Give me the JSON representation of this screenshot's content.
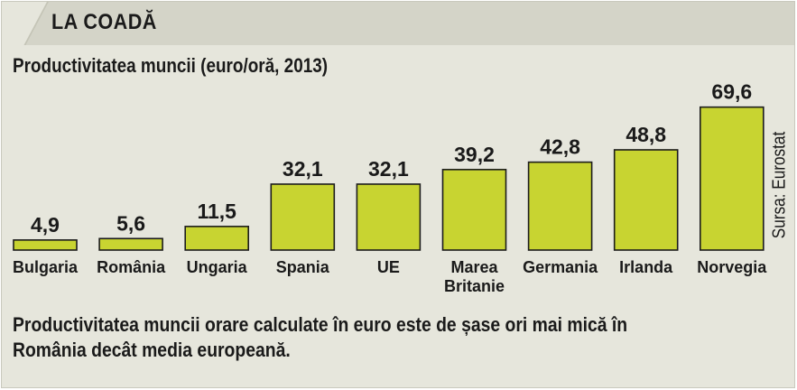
{
  "header": {
    "title": "LA COADĂ"
  },
  "chart_data": {
    "type": "bar",
    "title": "Productivitatea muncii (euro/oră, 2013)",
    "categories": [
      "Bulgaria",
      "România",
      "Ungaria",
      "Spania",
      "UE",
      "Marea Britanie",
      "Germania",
      "Irlanda",
      "Norvegia"
    ],
    "category_lines": [
      [
        "Bulgaria"
      ],
      [
        "România"
      ],
      [
        "Ungaria"
      ],
      [
        "Spania"
      ],
      [
        "UE"
      ],
      [
        "Marea",
        "Britanie"
      ],
      [
        "Germania"
      ],
      [
        "Irlanda"
      ],
      [
        "Norvegia"
      ]
    ],
    "values": [
      4.9,
      5.6,
      11.5,
      32.1,
      32.1,
      39.2,
      42.8,
      48.8,
      69.6
    ],
    "value_labels": [
      "4,9",
      "5,6",
      "11,5",
      "32,1",
      "32,1",
      "39,2",
      "42,8",
      "48,8",
      "69,6"
    ],
    "ylim": [
      0,
      70
    ],
    "bar_color": "#c8d431",
    "grid": false,
    "source": "Sursa: Eurostat"
  },
  "footnote": "Productivitatea muncii orare calculate în euro este de șase ori mai mică în România decât media europeană."
}
